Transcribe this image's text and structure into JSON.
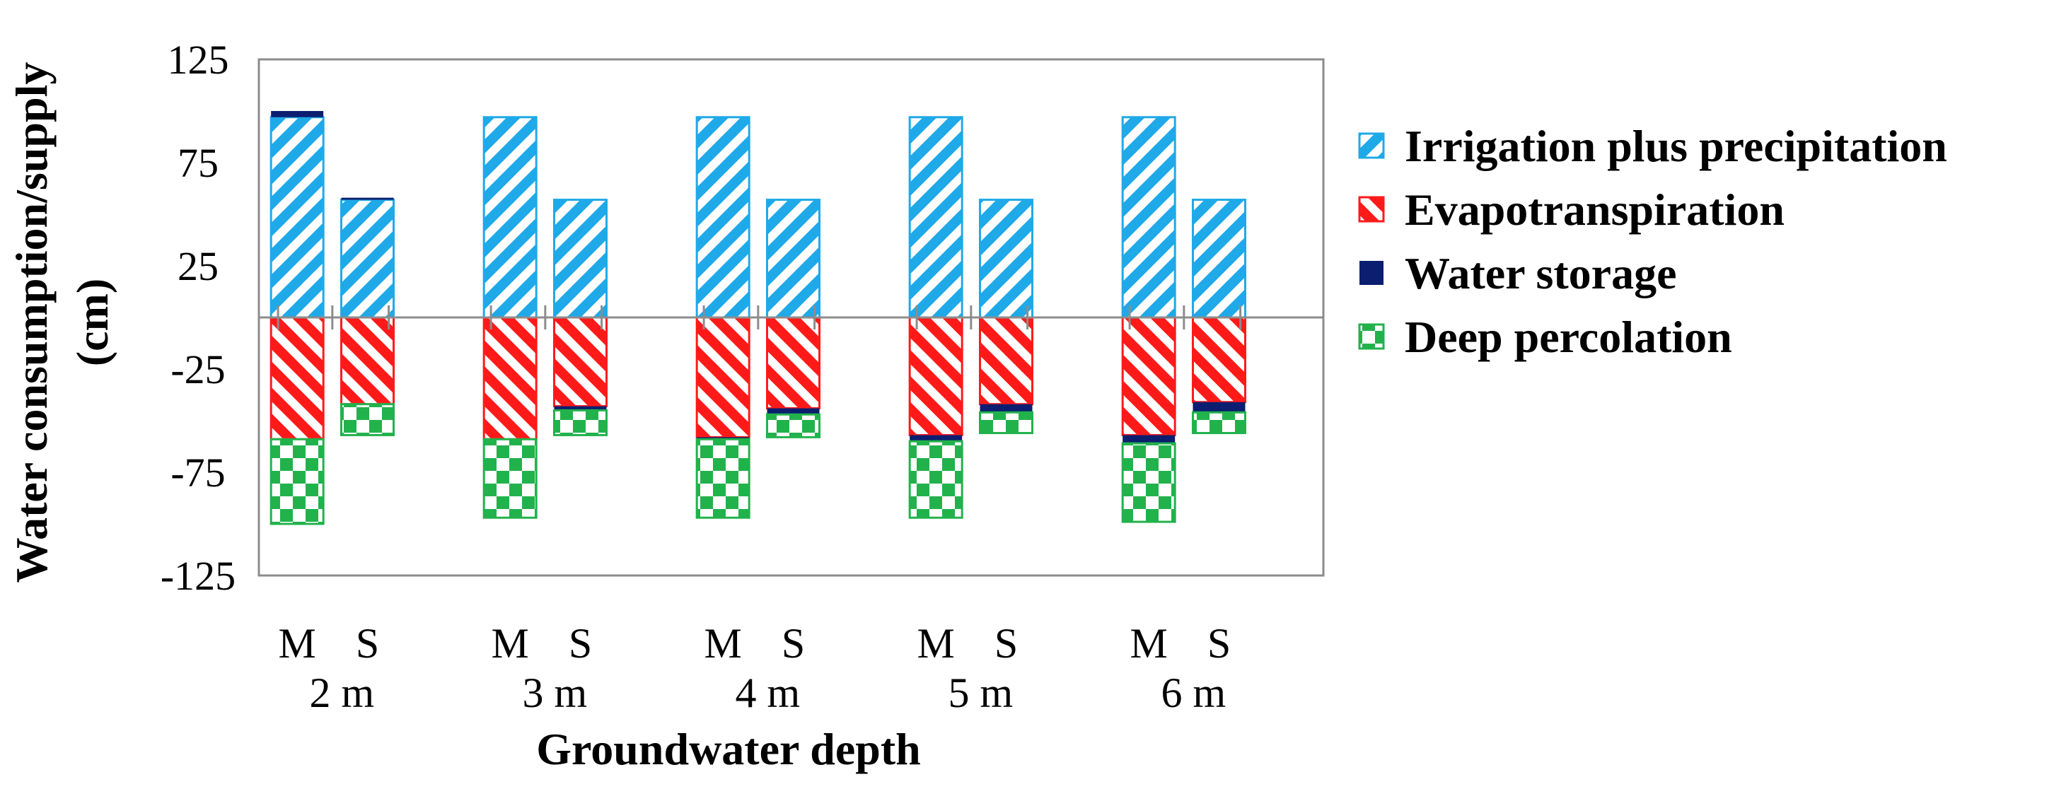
{
  "chart_data": {
    "type": "bar",
    "stacked": true,
    "title": "",
    "xlabel": "Groundwater depth",
    "ylabel": "Water consumption/supply (cm)",
    "ylabel_lines": [
      "Water consumption/supply",
      "(cm)"
    ],
    "ylim": [
      -125,
      125
    ],
    "yticks": [
      125,
      75,
      25,
      -25,
      -75,
      -125
    ],
    "yticks_text": [
      "125",
      "75",
      "25",
      "-25",
      "-75",
      "-125"
    ],
    "groups": [
      "2 m",
      "3 m",
      "4 m",
      "5 m",
      "6 m"
    ],
    "subcategories": [
      "M",
      "S"
    ],
    "categories": [
      "M 2 m",
      "S 2 m",
      "M 3 m",
      "S 3 m",
      "M 4 m",
      "S 4 m",
      "M 5 m",
      "S 5 m",
      "M 6 m",
      "S 6 m"
    ],
    "series": [
      {
        "name": "Irrigation plus precipitation",
        "color": "#1fa9e8",
        "pattern": "diag-up",
        "values": [
          97,
          57,
          97,
          57,
          97,
          57,
          97,
          57,
          97,
          57
        ]
      },
      {
        "name": "Water storage",
        "color": "#0b1e6f",
        "pattern": "solid",
        "values": [
          3,
          1,
          0,
          0,
          0,
          0,
          0,
          0,
          0,
          0
        ]
      },
      {
        "name": "Evapotranspiration",
        "color": "#ff1a1a",
        "pattern": "diag-down",
        "values": [
          -59,
          -42,
          -59,
          -43,
          -58,
          -44,
          -57,
          -42,
          -57,
          -41
        ]
      },
      {
        "name": "Water storage",
        "color": "#0b1e6f",
        "pattern": "solid",
        "values": [
          0,
          0,
          0,
          -2,
          -1,
          -3,
          -3,
          -4,
          -4,
          -5
        ]
      },
      {
        "name": "Deep percolation",
        "color": "#22b24c",
        "pattern": "checker",
        "values": [
          -41,
          -15,
          -38,
          -12,
          -38,
          -11,
          -37,
          -10,
          -38,
          -10
        ]
      }
    ],
    "legend": [
      {
        "label": "Irrigation plus precipitation",
        "color": "#1fa9e8",
        "pattern": "diag-up"
      },
      {
        "label": "Evapotranspiration",
        "color": "#ff1a1a",
        "pattern": "diag-down"
      },
      {
        "label": "Water storage",
        "color": "#0b1e6f",
        "pattern": "solid"
      },
      {
        "label": "Deep percolation",
        "color": "#22b24c",
        "pattern": "checker"
      }
    ],
    "legend_position": "right",
    "grid": false
  }
}
